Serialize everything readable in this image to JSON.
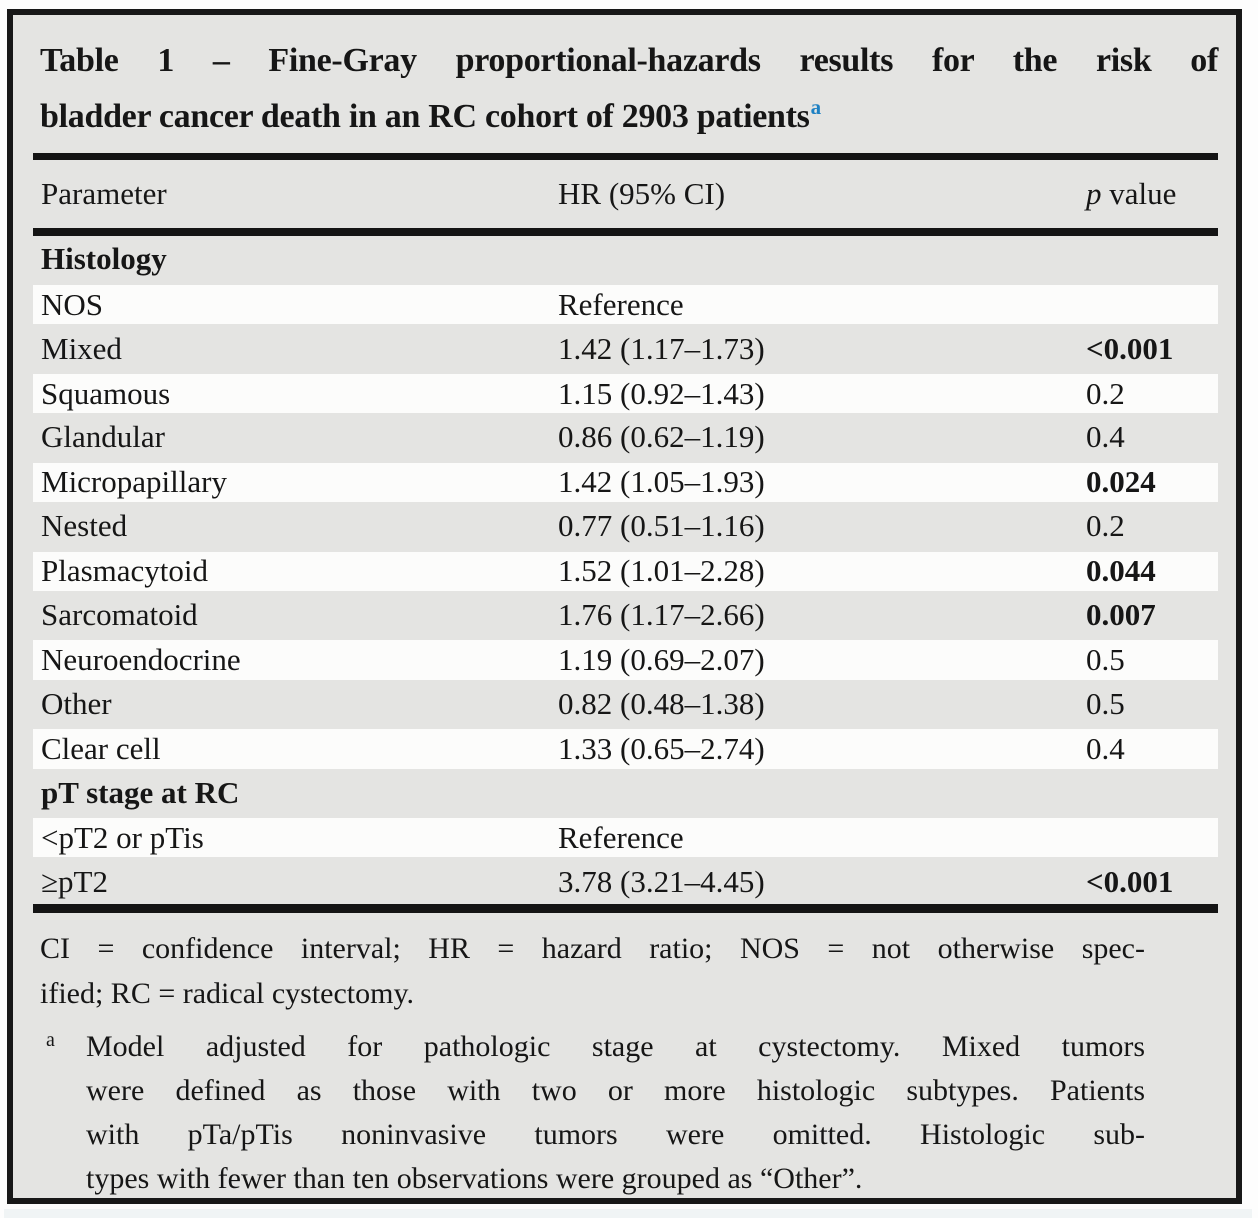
{
  "title": {
    "line1": "Table 1 – Fine-Gray proportional-hazards results for the risk of",
    "line2": "bladder cancer death in an RC cohort of 2903 patients",
    "superscript": "a"
  },
  "header": {
    "parameter": "Parameter",
    "hr": "HR (95% CI)",
    "p_italic": "p",
    "p_rest": " value"
  },
  "histology": {
    "label": "Histology",
    "rows": [
      {
        "param": "NOS",
        "hr": "Reference",
        "p": "",
        "bold": false
      },
      {
        "param": "Mixed",
        "hr": "1.42 (1.17–1.73)",
        "p": "<0.001",
        "bold": true
      },
      {
        "param": "Squamous",
        "hr": "1.15 (0.92–1.43)",
        "p": "0.2",
        "bold": false
      },
      {
        "param": "Glandular",
        "hr": "0.86 (0.62–1.19)",
        "p": "0.4",
        "bold": false
      },
      {
        "param": "Micropapillary",
        "hr": "1.42 (1.05–1.93)",
        "p": "0.024",
        "bold": true
      },
      {
        "param": "Nested",
        "hr": "0.77 (0.51–1.16)",
        "p": "0.2",
        "bold": false
      },
      {
        "param": "Plasmacytoid",
        "hr": "1.52 (1.01–2.28)",
        "p": "0.044",
        "bold": true
      },
      {
        "param": "Sarcomatoid",
        "hr": "1.76 (1.17–2.66)",
        "p": "0.007",
        "bold": true
      },
      {
        "param": "Neuroendocrine",
        "hr": "1.19 (0.69–2.07)",
        "p": "0.5",
        "bold": false
      },
      {
        "param": "Other",
        "hr": "0.82 (0.48–1.38)",
        "p": "0.5",
        "bold": false
      },
      {
        "param": "Clear cell",
        "hr": "1.33 (0.65–2.74)",
        "p": "0.4",
        "bold": false
      }
    ]
  },
  "pt_stage": {
    "label": "pT stage at RC",
    "rows": [
      {
        "param": "<pT2 or pTis",
        "hr": "Reference",
        "p": "",
        "bold": false
      },
      {
        "param": "≥pT2",
        "hr": "3.78 (3.21–4.45)",
        "p": "<0.001",
        "bold": true
      }
    ]
  },
  "footnotes": {
    "abbrev_line1": "CI = confidence interval; HR = hazard ratio; NOS = not otherwise spec-",
    "abbrev_line2": "ified; RC = radical cystectomy.",
    "marker": "a",
    "note_line1": "Model adjusted for pathologic stage at cystectomy. Mixed tumors",
    "note_line2": "were defined as those with two or more histologic subtypes. Patients",
    "note_line3": "with pTa/pTis noninvasive tumors were omitted. Histologic sub-",
    "note_line4": "types with fewer than ten observations were grouped as “Other”."
  },
  "colors": {
    "superscript_blue": "#1d80c3",
    "frame_border": "#181818",
    "background_gray": "#e4e4e2",
    "row_white": "#fcfcfb"
  }
}
